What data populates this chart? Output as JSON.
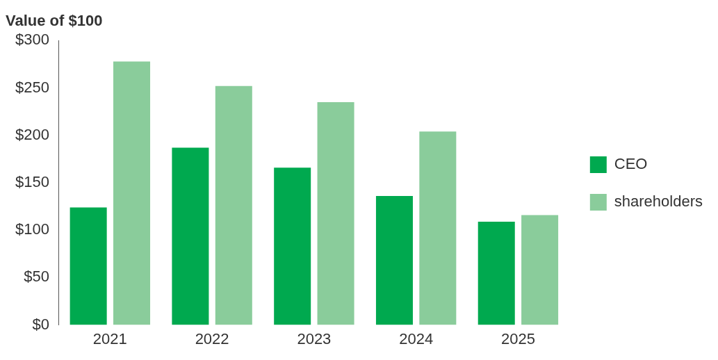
{
  "chart_data": {
    "type": "bar",
    "ylabel": "Value of $100",
    "categories": [
      "2021",
      "2022",
      "2023",
      "2024",
      "2025"
    ],
    "series": [
      {
        "name": "CEO",
        "color": "#00a94f",
        "values": [
          124,
          187,
          166,
          136,
          109
        ]
      },
      {
        "name": "shareholders",
        "color": "#8acc9b",
        "values": [
          278,
          252,
          235,
          204,
          116
        ]
      }
    ],
    "ylim": [
      0,
      300
    ],
    "yticks": [
      {
        "value": 0,
        "label": "$0"
      },
      {
        "value": 50,
        "label": "$50"
      },
      {
        "value": 100,
        "label": "$100"
      },
      {
        "value": 150,
        "label": "$150"
      },
      {
        "value": 200,
        "label": "$200"
      },
      {
        "value": 250,
        "label": "$250"
      },
      {
        "value": 300,
        "label": "$300"
      }
    ],
    "grid": false,
    "legend": "right"
  }
}
